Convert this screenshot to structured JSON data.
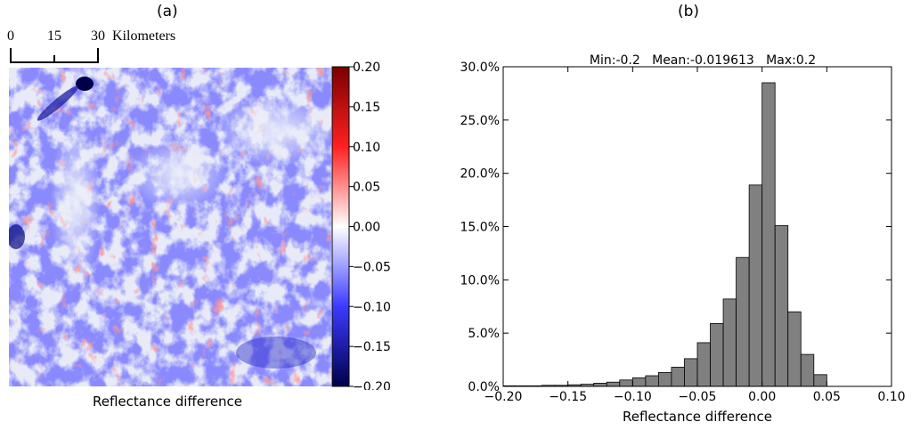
{
  "panel_a": {
    "label": "(a)",
    "scalebar": {
      "ticks": [
        "0",
        "15",
        "30"
      ],
      "unit": "Kilometers"
    },
    "colorbar": {
      "ticks": [
        "0.20",
        "0.15",
        "0.10",
        "0.05",
        "0.00",
        "−0.05",
        "−0.10",
        "−0.15",
        "−0.20"
      ],
      "colors": {
        "high": "#7a0000",
        "mid_high": "#ff2020",
        "zero": "#ffffff",
        "mid_low": "#3b3bff",
        "low": "#00004a"
      }
    },
    "xlabel": "Reflectance difference"
  },
  "panel_b": {
    "label": "(b)",
    "stats": "Min:-0.2   Mean:-0.019613   Max:0.2"
  },
  "chart_data": {
    "type": "bar",
    "title": "Min:-0.2   Mean:-0.019613   Max:0.2",
    "xlabel": "Reflectance difference",
    "ylabel": "",
    "xlim": [
      -0.2,
      0.1
    ],
    "ylim": [
      0,
      30
    ],
    "bar_color": "#808080",
    "bin_width": 0.01,
    "bin_starts": [
      -0.2,
      -0.19,
      -0.18,
      -0.17,
      -0.16,
      -0.15,
      -0.14,
      -0.13,
      -0.12,
      -0.11,
      -0.1,
      -0.09,
      -0.08,
      -0.07,
      -0.06,
      -0.05,
      -0.04,
      -0.03,
      -0.02,
      -0.01,
      0.0,
      0.01,
      0.02,
      0.03,
      0.04
    ],
    "values": [
      0.05,
      0.05,
      0.05,
      0.1,
      0.1,
      0.15,
      0.2,
      0.3,
      0.4,
      0.6,
      0.8,
      1.0,
      1.3,
      1.8,
      2.6,
      4.1,
      5.9,
      8.2,
      12.1,
      18.9,
      28.5,
      15.1,
      7.0,
      3.0,
      1.1
    ],
    "xticks": [
      "−0.20",
      "−0.15",
      "−0.10",
      "−0.05",
      "0.00",
      "0.05",
      "0.10"
    ],
    "yticks": [
      "0.0%",
      "5.0%",
      "10.0%",
      "15.0%",
      "20.0%",
      "25.0%",
      "30.0%"
    ],
    "grid": false
  }
}
